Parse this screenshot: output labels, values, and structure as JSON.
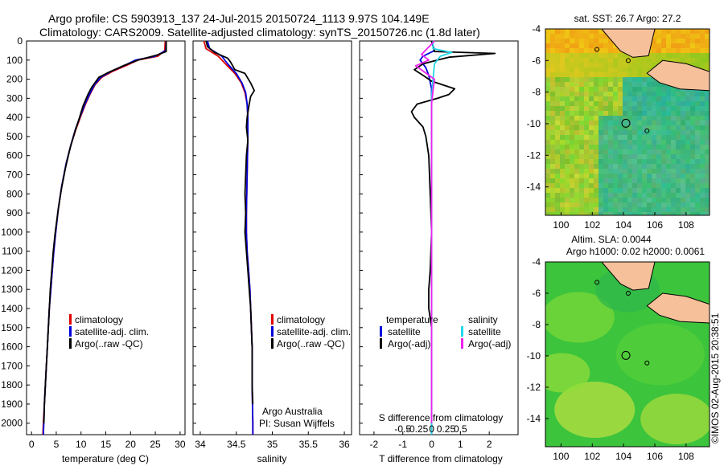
{
  "header": {
    "line1": "Argo profile: CS 5903913_137 24-Jul-2015 20150724_1113 9.97S 104.149E",
    "line2": "Climatology: CARS2009. Satellite-adjusted climatology: synTS_20150726.nc (1.8d later)"
  },
  "credit": {
    "line1": "Argo Australia",
    "line2": "PI: Susan Wijffels"
  },
  "stamp": "©IMOS 02-Aug-2015 20:38:51",
  "colors": {
    "climatology": "#e00000",
    "satellite_adj": "#0000dd",
    "argo": "#000000",
    "salinity_sat": "#22d8e8",
    "salinity_argo": "#ee22ee",
    "land": "#f5c09a",
    "coast": "#000000"
  },
  "maps": [
    {
      "title": "sat. SST: 26.7 Argo: 27.2",
      "subtitle": "",
      "x_ticks": [
        "100",
        "102",
        "104",
        "106",
        "108"
      ],
      "y_ticks": [
        "-4",
        "-6",
        "-8",
        "-10",
        "-12",
        "-14"
      ],
      "xlim": [
        99,
        109.5
      ],
      "ylim": [
        -15.8,
        -4
      ],
      "float_lon": 104.149,
      "float_lat": -9.97,
      "field": "sst"
    },
    {
      "title": "Altim. SLA: 0.0044",
      "subtitle": "Argo h1000: 0.02 h2000: 0.0061",
      "x_ticks": [
        "100",
        "102",
        "104",
        "106",
        "108"
      ],
      "y_ticks": [
        "-4",
        "-6",
        "-8",
        "-10",
        "-12",
        "-14"
      ],
      "xlim": [
        99,
        109.5
      ],
      "ylim": [
        -15.8,
        -4
      ],
      "float_lon": 104.149,
      "float_lat": -9.97,
      "field": "sla"
    }
  ],
  "chart_data": [
    {
      "type": "line",
      "panel": "temperature",
      "xlabel": "temperature (deg C)",
      "ylabel": "",
      "xlim": [
        -1,
        31
      ],
      "ylim": [
        2060,
        0
      ],
      "x_ticks": [
        0,
        5,
        10,
        15,
        20,
        25,
        30
      ],
      "y_ticks": [
        0,
        100,
        200,
        300,
        400,
        500,
        600,
        700,
        800,
        900,
        1000,
        1100,
        1200,
        1300,
        1400,
        1500,
        1600,
        1700,
        1800,
        1900,
        2000
      ],
      "legend": [
        "climatology",
        "satellite-adj. clim.",
        "Argo(..raw -QC)"
      ],
      "legend_position": "center",
      "series": [
        {
          "name": "climatology",
          "color": "#e00000",
          "points": [
            [
              27.0,
              0
            ],
            [
              26.9,
              50
            ],
            [
              25.5,
              80
            ],
            [
              21.5,
              100
            ],
            [
              19.0,
              130
            ],
            [
              16.3,
              160
            ],
            [
              14.2,
              190
            ],
            [
              12.8,
              230
            ],
            [
              11.8,
              280
            ],
            [
              10.9,
              330
            ],
            [
              10.0,
              390
            ],
            [
              9.0,
              460
            ],
            [
              8.0,
              540
            ],
            [
              7.0,
              640
            ],
            [
              6.1,
              760
            ],
            [
              5.4,
              880
            ],
            [
              4.9,
              1000
            ],
            [
              4.5,
              1100
            ],
            [
              4.2,
              1200
            ],
            [
              3.9,
              1300
            ],
            [
              3.6,
              1400
            ],
            [
              3.4,
              1500
            ],
            [
              3.2,
              1600
            ],
            [
              3.0,
              1700
            ],
            [
              2.8,
              1800
            ],
            [
              2.6,
              1900
            ],
            [
              2.4,
              2000
            ],
            [
              2.3,
              2060
            ]
          ]
        },
        {
          "name": "satellite-adj. clim.",
          "color": "#0000dd",
          "points": [
            [
              27.2,
              0
            ],
            [
              27.1,
              50
            ],
            [
              25.0,
              80
            ],
            [
              21.0,
              100
            ],
            [
              18.6,
              130
            ],
            [
              16.0,
              160
            ],
            [
              14.0,
              190
            ],
            [
              12.7,
              230
            ],
            [
              11.7,
              280
            ],
            [
              10.8,
              330
            ],
            [
              9.9,
              390
            ],
            [
              8.9,
              460
            ],
            [
              8.0,
              540
            ],
            [
              7.0,
              640
            ],
            [
              6.1,
              760
            ],
            [
              5.4,
              880
            ],
            [
              4.9,
              1000
            ],
            [
              4.5,
              1100
            ],
            [
              4.2,
              1200
            ],
            [
              3.9,
              1300
            ],
            [
              3.6,
              1400
            ],
            [
              3.4,
              1500
            ],
            [
              3.2,
              1600
            ],
            [
              3.0,
              1700
            ],
            [
              2.8,
              1800
            ],
            [
              2.6,
              1900
            ],
            [
              2.5,
              2000
            ],
            [
              2.4,
              2060
            ]
          ]
        },
        {
          "name": "Argo(..raw -QC)",
          "color": "#000000",
          "points": [
            [
              27.2,
              0
            ],
            [
              27.2,
              55
            ],
            [
              25.2,
              75
            ],
            [
              21.5,
              100
            ],
            [
              18.5,
              130
            ],
            [
              15.5,
              165
            ],
            [
              13.6,
              190
            ],
            [
              12.2,
              240
            ],
            [
              11.4,
              280
            ],
            [
              10.4,
              340
            ],
            [
              9.7,
              400
            ],
            [
              8.7,
              480
            ],
            [
              7.8,
              560
            ],
            [
              6.9,
              660
            ],
            [
              6.0,
              780
            ],
            [
              5.3,
              900
            ],
            [
              4.8,
              1000
            ],
            [
              4.4,
              1100
            ],
            [
              4.1,
              1200
            ],
            [
              3.8,
              1300
            ],
            [
              3.6,
              1400
            ],
            [
              3.4,
              1500
            ],
            [
              3.2,
              1600
            ],
            [
              3.0,
              1700
            ],
            [
              2.8,
              1800
            ],
            [
              2.6,
              1900
            ],
            [
              2.5,
              2000
            ]
          ]
        }
      ]
    },
    {
      "type": "line",
      "panel": "salinity",
      "xlabel": "salinity",
      "ylabel": "",
      "xlim": [
        33.9,
        36.1
      ],
      "ylim": [
        2060,
        0
      ],
      "x_ticks": [
        34,
        34.5,
        35,
        35.5,
        36
      ],
      "legend": [
        "climatology",
        "satellite-adj. clim.",
        "Argo(..raw -QC)"
      ],
      "legend_position": "center",
      "series": [
        {
          "name": "climatology",
          "color": "#e00000",
          "points": [
            [
              34.05,
              0
            ],
            [
              34.08,
              40
            ],
            [
              34.25,
              80
            ],
            [
              34.35,
              120
            ],
            [
              34.48,
              170
            ],
            [
              34.57,
              220
            ],
            [
              34.62,
              270
            ],
            [
              34.65,
              330
            ],
            [
              34.66,
              400
            ],
            [
              34.66,
              500
            ],
            [
              34.65,
              700
            ],
            [
              34.64,
              900
            ],
            [
              34.64,
              1000
            ],
            [
              34.65,
              1100
            ],
            [
              34.67,
              1200
            ],
            [
              34.69,
              1300
            ],
            [
              34.7,
              1400
            ],
            [
              34.71,
              1500
            ],
            [
              34.72,
              1600
            ],
            [
              34.72,
              1800
            ],
            [
              34.73,
              2000
            ],
            [
              34.73,
              2060
            ]
          ]
        },
        {
          "name": "satellite-adj. clim.",
          "color": "#0000dd",
          "points": [
            [
              34.1,
              0
            ],
            [
              34.13,
              40
            ],
            [
              34.3,
              80
            ],
            [
              34.38,
              120
            ],
            [
              34.5,
              170
            ],
            [
              34.58,
              220
            ],
            [
              34.63,
              270
            ],
            [
              34.65,
              330
            ],
            [
              34.66,
              400
            ],
            [
              34.66,
              500
            ],
            [
              34.65,
              700
            ],
            [
              34.64,
              900
            ],
            [
              34.64,
              1000
            ],
            [
              34.65,
              1100
            ],
            [
              34.67,
              1200
            ],
            [
              34.69,
              1300
            ],
            [
              34.7,
              1400
            ],
            [
              34.71,
              1500
            ],
            [
              34.72,
              1600
            ],
            [
              34.72,
              1800
            ],
            [
              34.73,
              2000
            ],
            [
              34.73,
              2060
            ]
          ]
        },
        {
          "name": "Argo(..raw -QC)",
          "color": "#000000",
          "points": [
            [
              34.08,
              0
            ],
            [
              34.1,
              30
            ],
            [
              34.2,
              60
            ],
            [
              34.38,
              90
            ],
            [
              34.42,
              110
            ],
            [
              34.48,
              150
            ],
            [
              34.62,
              170
            ],
            [
              34.7,
              220
            ],
            [
              34.75,
              260
            ],
            [
              34.7,
              290
            ],
            [
              34.68,
              330
            ],
            [
              34.65,
              400
            ],
            [
              34.64,
              450
            ],
            [
              34.66,
              520
            ],
            [
              34.64,
              600
            ],
            [
              34.63,
              700
            ],
            [
              34.62,
              800
            ],
            [
              34.63,
              900
            ],
            [
              34.62,
              1000
            ],
            [
              34.64,
              1100
            ],
            [
              34.66,
              1200
            ],
            [
              34.68,
              1300
            ],
            [
              34.7,
              1400
            ],
            [
              34.71,
              1500
            ],
            [
              34.72,
              1600
            ],
            [
              34.72,
              1800
            ],
            [
              34.73,
              1900
            ]
          ]
        }
      ]
    },
    {
      "type": "line",
      "panel": "difference",
      "xlabel": "T difference from climatology",
      "xlabel2": "S difference from climatology",
      "ylabel": "",
      "xlim": [
        -2.5,
        3.0
      ],
      "ylim": [
        2060,
        0
      ],
      "x_ticks_T": [
        "-2",
        "-1",
        "0",
        "1",
        "2"
      ],
      "x_ticks_T_values": [
        -2,
        -1,
        0,
        1,
        2
      ],
      "x_ticks_S": [
        "-0.5",
        "-0.25",
        "0",
        "0.25",
        "0.5"
      ],
      "x_ticks_S_values": [
        -0.5,
        -0.25,
        0,
        0.25,
        0.5
      ],
      "legend_T": [
        "temperature",
        "satellite",
        "Argo(-adj)"
      ],
      "legend_S": [
        "salinity",
        "satellite",
        "Argo(-adj)"
      ],
      "legend_position": "center",
      "series": [
        {
          "name": "temperature satellite",
          "color": "#0000dd",
          "points": [
            [
              0.0,
              0
            ],
            [
              0.1,
              50
            ],
            [
              -0.3,
              80
            ],
            [
              -0.4,
              100
            ],
            [
              -0.2,
              140
            ],
            [
              -0.1,
              180
            ],
            [
              0.0,
              250
            ],
            [
              0.0,
              400
            ],
            [
              0.0,
              800
            ],
            [
              0.0,
              1200
            ],
            [
              0.0,
              2060
            ]
          ]
        },
        {
          "name": "temperature Argo(-adj)",
          "color": "#000000",
          "points": [
            [
              0.0,
              0
            ],
            [
              0.1,
              55
            ],
            [
              2.2,
              65
            ],
            [
              0.6,
              85
            ],
            [
              0.2,
              100
            ],
            [
              -0.3,
              120
            ],
            [
              -0.6,
              150
            ],
            [
              -0.3,
              180
            ],
            [
              0.0,
              210
            ],
            [
              0.8,
              250
            ],
            [
              0.6,
              280
            ],
            [
              0.2,
              300
            ],
            [
              -0.5,
              330
            ],
            [
              -0.7,
              370
            ],
            [
              -0.6,
              400
            ],
            [
              -0.3,
              450
            ],
            [
              -0.2,
              500
            ],
            [
              -0.1,
              600
            ],
            [
              -0.05,
              800
            ],
            [
              0.0,
              1000
            ],
            [
              -0.05,
              1200
            ],
            [
              -0.1,
              1300
            ],
            [
              -0.1,
              1400
            ],
            [
              0.0,
              1500
            ],
            [
              0.0,
              2060
            ]
          ]
        },
        {
          "name": "salinity satellite",
          "color": "#22d8e8",
          "points": [
            [
              0.05,
              0
            ],
            [
              0.05,
              40
            ],
            [
              0.7,
              60
            ],
            [
              0.3,
              80
            ],
            [
              0.1,
              120
            ],
            [
              0.05,
              200
            ],
            [
              0.0,
              300
            ],
            [
              0.0,
              600
            ],
            [
              0.0,
              1000
            ],
            [
              0.0,
              2060
            ]
          ]
        },
        {
          "name": "salinity Argo(-adj)",
          "color": "#ee22ee",
          "points": [
            [
              0.1,
              0
            ],
            [
              -0.35,
              70
            ],
            [
              -0.1,
              100
            ],
            [
              -0.55,
              130
            ],
            [
              0.1,
              200
            ],
            [
              0.05,
              260
            ],
            [
              0.0,
              330
            ],
            [
              0.0,
              600
            ],
            [
              0.0,
              1000
            ],
            [
              0.0,
              2000
            ]
          ]
        }
      ]
    }
  ]
}
